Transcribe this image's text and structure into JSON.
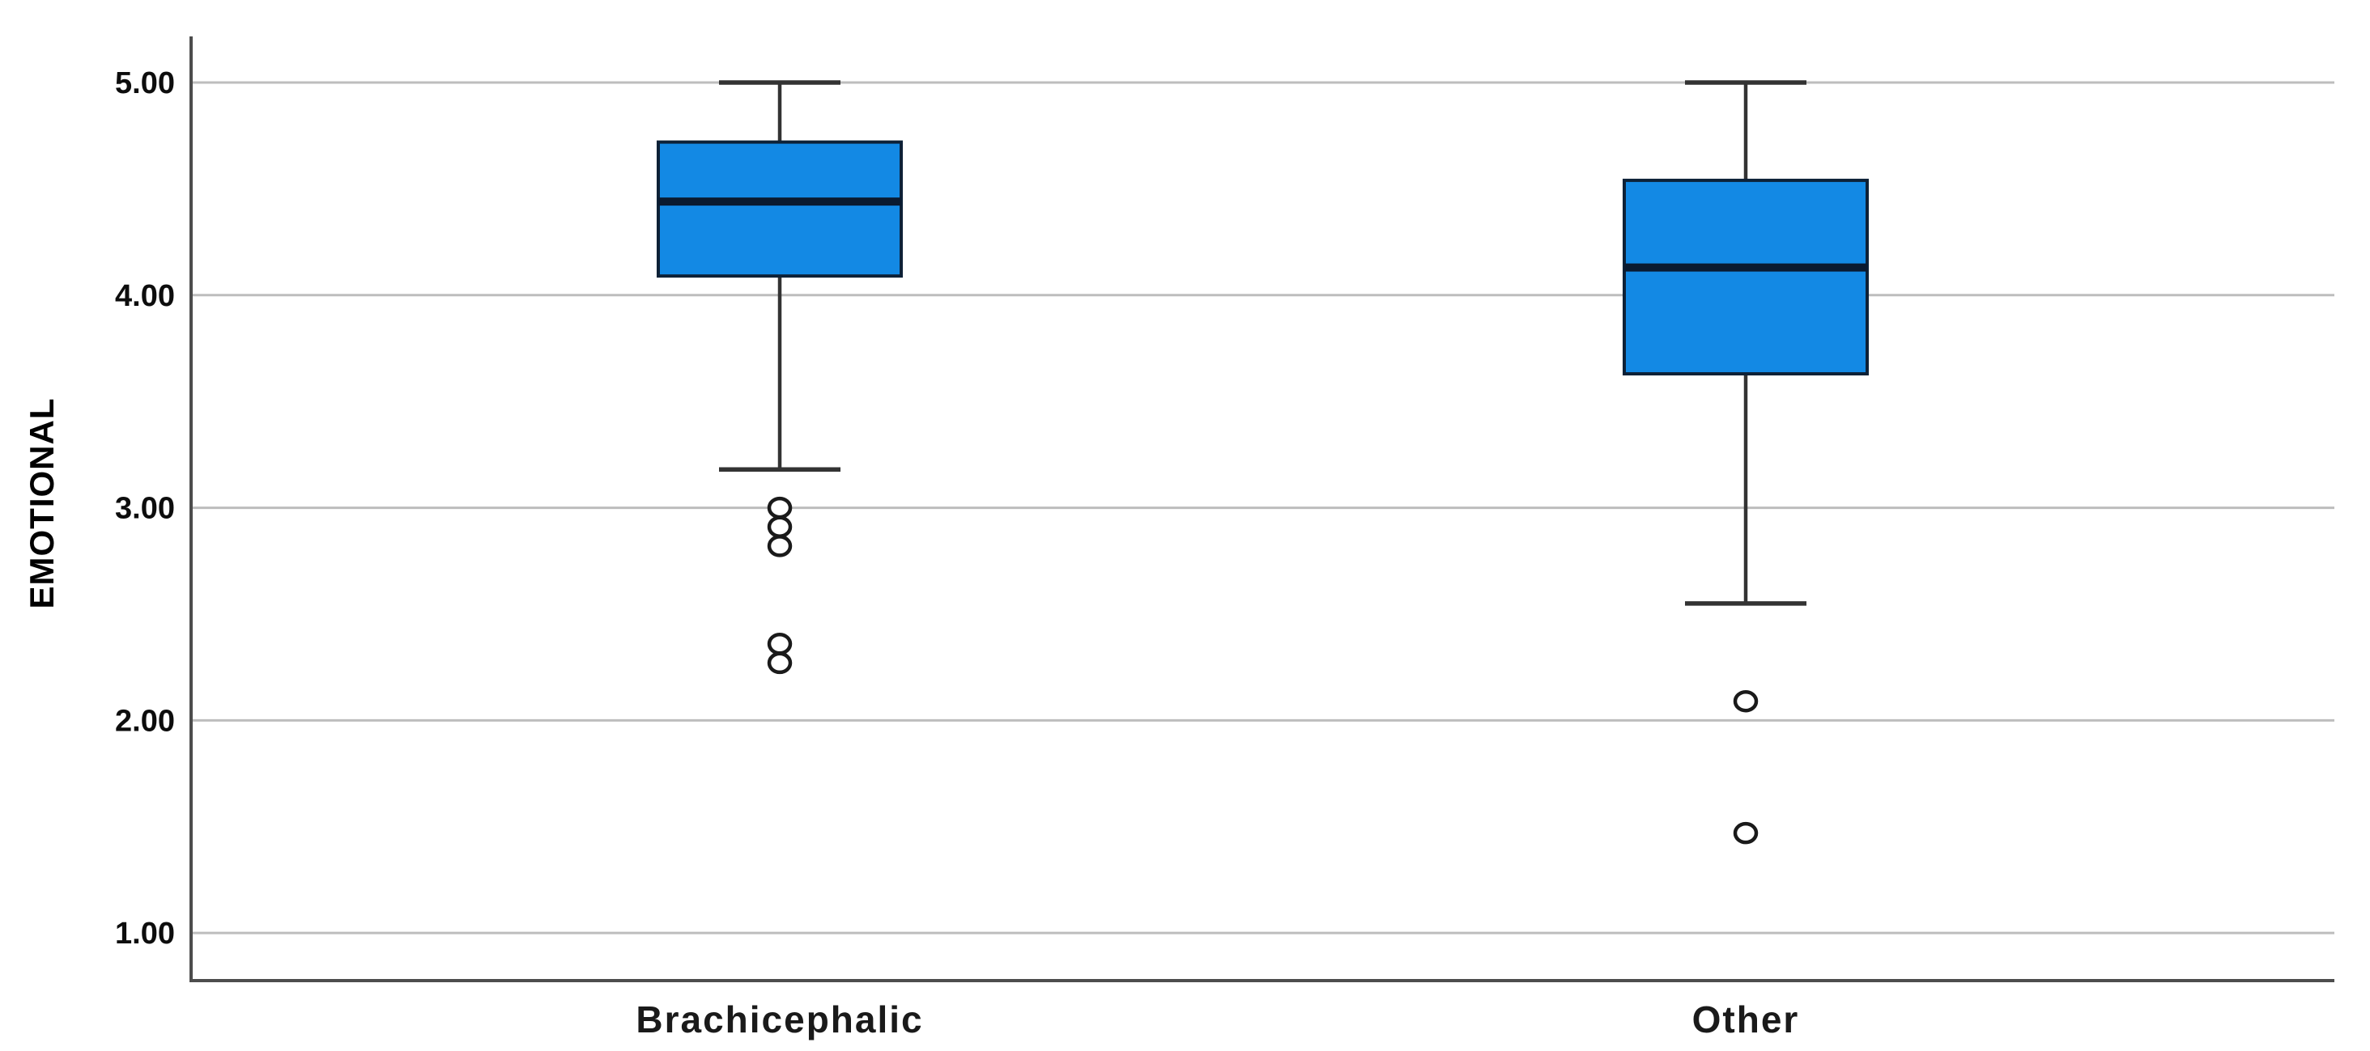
{
  "figure": {
    "background": "#FFFFFF"
  },
  "y_axis": {
    "label": "EMOTIONAL",
    "ticks": [
      {
        "label": "5.00",
        "value": 5.0
      },
      {
        "label": "4.00",
        "value": 4.0
      },
      {
        "label": "3.00",
        "value": 3.0
      },
      {
        "label": "2.00",
        "value": 2.0
      },
      {
        "label": "1.00",
        "value": 1.0
      }
    ]
  },
  "x_axis": {
    "categories": [
      "Brachicephalic",
      "Other"
    ]
  },
  "chart_data": {
    "type": "boxplot",
    "title": "",
    "xlabel": "",
    "ylabel": "EMOTIONAL",
    "ylim": [
      0.776,
      5.217
    ],
    "grid": "horizontal",
    "legend": "none",
    "categories": [
      "Brachicephalic",
      "Other"
    ],
    "series": [
      {
        "category": "Brachicephalic",
        "whisker_max": 5.0,
        "q3": 4.72,
        "median": 4.44,
        "q1": 4.09,
        "whisker_min": 3.18,
        "outliers": [
          3.0,
          2.91,
          2.82,
          2.36,
          2.27
        ]
      },
      {
        "category": "Other",
        "whisker_max": 5.0,
        "q3": 4.54,
        "median": 4.13,
        "q1": 3.63,
        "whisker_min": 2.55,
        "outliers": [
          2.09,
          1.47
        ]
      }
    ],
    "colors": {
      "box_fill": "#1389E4",
      "box_border": "#0D2137",
      "median": "#0A1A30",
      "whisker": "#333333",
      "outlier_stroke": "#1A1A1A",
      "gridline": "#BDBDBD",
      "axis": "#4D4D4D",
      "tick_label": "#0D0D0D",
      "category_label": "#1A1A1A",
      "background": "#FFFFFF"
    }
  }
}
